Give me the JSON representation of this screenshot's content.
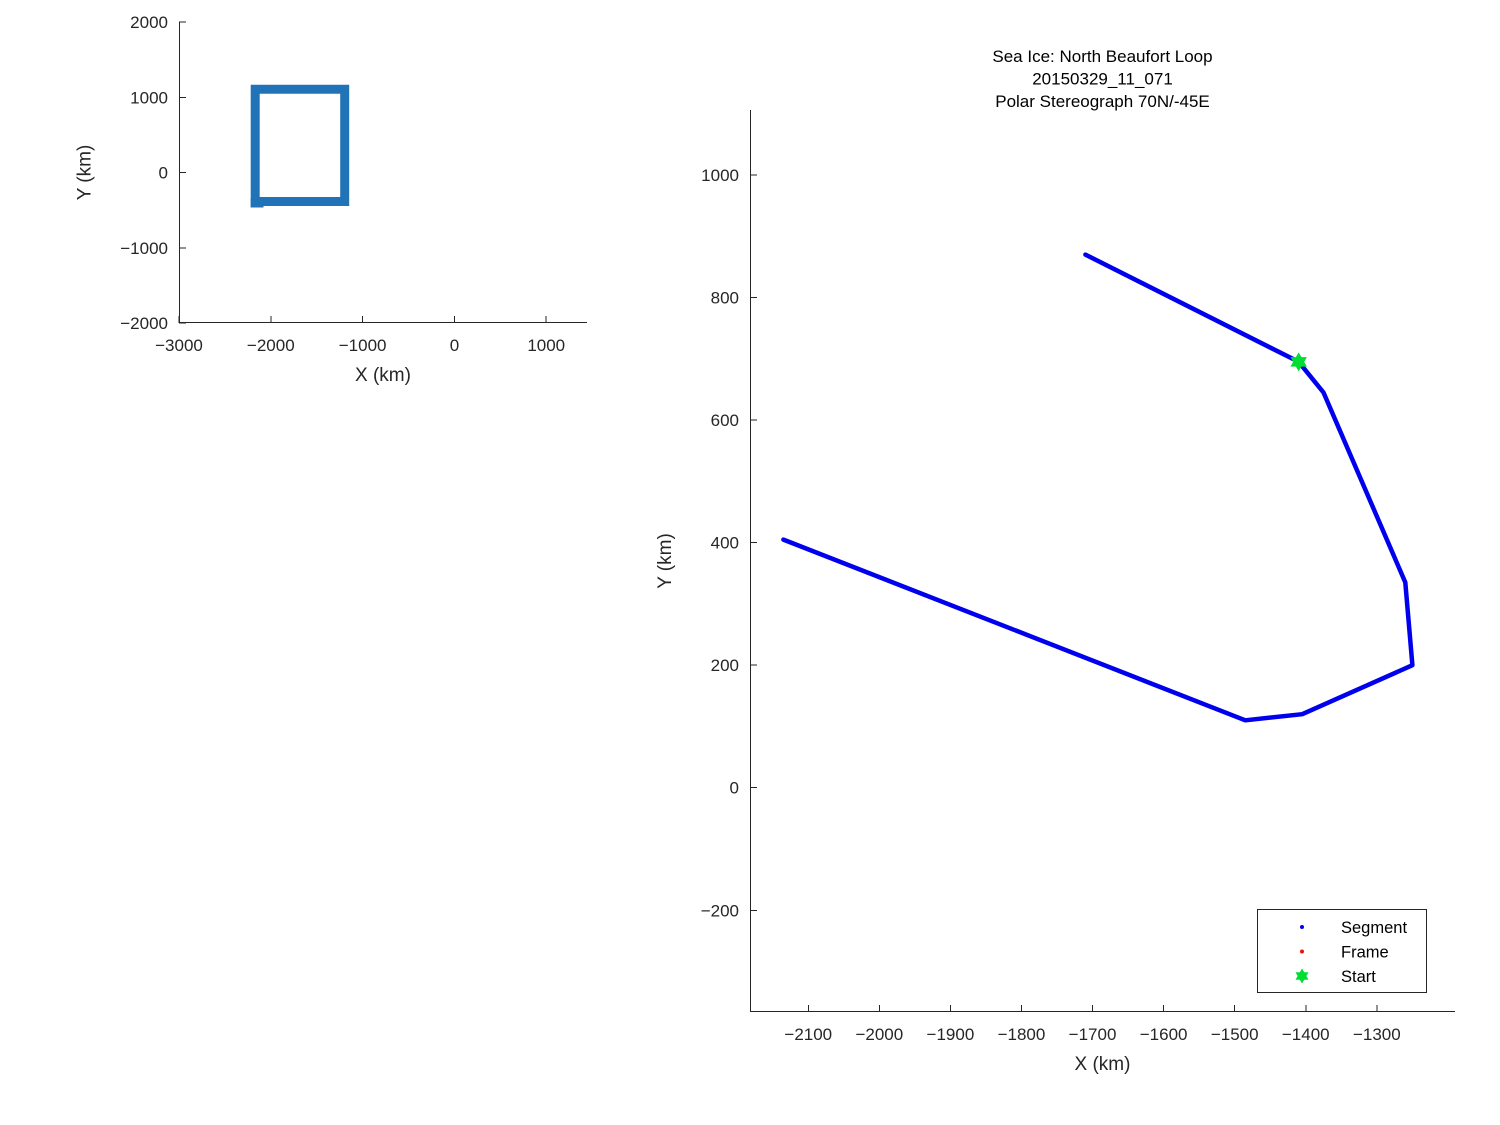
{
  "page": {
    "background": "#ffffff",
    "text_color": "#262626",
    "title_color": "#000000"
  },
  "chart_data": [
    {
      "id": "overview-map",
      "type": "line",
      "title_lines": [],
      "xlabel": "X (km)",
      "ylabel": "Y (km)",
      "xlim": [
        -3000,
        1444
      ],
      "ylim": [
        -2000,
        2000
      ],
      "xticks": [
        -3000,
        -2000,
        -1000,
        0,
        1000
      ],
      "yticks": [
        -2000,
        -1000,
        0,
        1000,
        2000
      ],
      "grid": false,
      "axis_color": "#262626",
      "series": [
        {
          "name": "full-track-outline",
          "color": "#2073B6",
          "linewidth": 9,
          "linejoin": "miter",
          "linecap": "butt",
          "points": [
            [
              -2170,
              -385
            ],
            [
              -2170,
              1105
            ],
            [
              -1195,
              1105
            ],
            [
              -1195,
              -385
            ],
            [
              -2170,
              -385
            ]
          ]
        },
        {
          "name": "full-track-start-tail",
          "color": "#2073B6",
          "linewidth": 9,
          "linejoin": "miter",
          "linecap": "butt",
          "points": [
            [
              -2220,
              -405
            ],
            [
              -2080,
              -405
            ]
          ]
        }
      ],
      "markers": [],
      "legend": null
    },
    {
      "id": "segment-map",
      "type": "line",
      "title_lines": [
        "Sea Ice: North Beaufort Loop",
        "20150329_11_071",
        "Polar Stereograph 70N/-45E"
      ],
      "xlabel": "X (km)",
      "ylabel": "Y (km)",
      "xlim": [
        -2182,
        -1190
      ],
      "ylim": [
        -366,
        1106
      ],
      "xticks": [
        -2100,
        -2000,
        -1900,
        -1800,
        -1700,
        -1600,
        -1500,
        -1400,
        -1300
      ],
      "yticks": [
        -200,
        0,
        200,
        400,
        600,
        800,
        1000
      ],
      "grid": false,
      "axis_color": "#262626",
      "series": [
        {
          "name": "segment-track",
          "color": "#0000EE",
          "linewidth": 4.5,
          "linejoin": "round",
          "linecap": "round",
          "points": [
            [
              -1710,
              870
            ],
            [
              -1410,
              695
            ],
            [
              -1375,
              645
            ],
            [
              -1260,
              335
            ],
            [
              -1250,
              200
            ],
            [
              -1405,
              120
            ],
            [
              -1485,
              110
            ],
            [
              -2135,
              405
            ]
          ]
        }
      ],
      "markers": [
        {
          "name": "start-marker",
          "shape": "hexagram",
          "color": "#00DD33",
          "x": -1410,
          "y": 695,
          "size": 19
        }
      ],
      "legend": {
        "position": "southeast",
        "border_color": "#262626",
        "background": "#ffffff",
        "items": [
          {
            "label": "Segment",
            "marker": "dot",
            "color": "#0000EE"
          },
          {
            "label": "Frame",
            "marker": "dot",
            "color": "#EE1111"
          },
          {
            "label": "Start",
            "marker": "hexagram",
            "color": "#00DD33"
          }
        ]
      }
    }
  ]
}
